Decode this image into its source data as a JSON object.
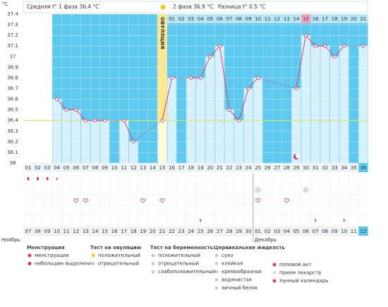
{
  "unit": "°C",
  "header": {
    "phase1": "Средняя t° 1 фаза 36.4 °C",
    "phase2": "2 фаза 36.9 °C",
    "difference": "Разница t° 0.5 °C"
  },
  "chart_data": {
    "type": "line",
    "categories": [
      "01",
      "02",
      "03",
      "04",
      "05",
      "06",
      "07",
      "08",
      "09",
      "10",
      "11",
      "12",
      "13",
      "14",
      "15",
      "16",
      "17",
      "18",
      "19",
      "20",
      "21",
      "22",
      "23",
      "24",
      "25",
      "26",
      "27",
      "28",
      "29",
      "30",
      "31",
      "32",
      "33",
      "34",
      "35",
      "36"
    ],
    "values": [
      null,
      null,
      null,
      36.6,
      36.5,
      36.5,
      36.4,
      36.4,
      36.4,
      null,
      36.4,
      36.2,
      null,
      null,
      36.4,
      36.8,
      null,
      36.8,
      36.8,
      37.0,
      37.1,
      36.5,
      36.4,
      36.7,
      36.8,
      null,
      null,
      null,
      36.7,
      37.2,
      37.1,
      37.1,
      37.0,
      37.1,
      null,
      37.1
    ],
    "ylim": [
      36,
      37.4
    ],
    "yticks": [
      36,
      36.1,
      36.2,
      36.3,
      36.4,
      36.5,
      36.6,
      36.7,
      36.8,
      36.9,
      37,
      37.1,
      37.2,
      37.3,
      37.4
    ],
    "grid": true,
    "color": "#e23a6e",
    "bar_color": "#d6f1fb",
    "background_color": "#5ec9ef",
    "cover_line": 36.4,
    "cover_color": "#d6e86e"
  },
  "ovulation": {
    "label": "ОВУЛЯЦИЯ",
    "day": "15"
  },
  "phase2_days": {
    "labels": [
      "01",
      "02",
      "03",
      "04",
      "05",
      "06",
      "07",
      "08",
      "09",
      "10",
      "11",
      "12",
      "13",
      "14",
      "15",
      "16",
      "17",
      "18",
      "19",
      "20",
      "21"
    ],
    "highlighted": "15"
  },
  "dates": [
    "07",
    "08",
    "09",
    "10",
    "11",
    "12",
    "13",
    "14",
    "15",
    "16",
    "17",
    "18",
    "19",
    "20",
    "21",
    "22",
    "23",
    "24",
    "25",
    "26",
    "27",
    "28",
    "29",
    "30",
    "01",
    "02",
    "03",
    "04",
    "05",
    "06",
    "07",
    "08",
    "09",
    "10",
    "11",
    "12"
  ],
  "months": [
    "Ноябрь",
    "Декабрь"
  ],
  "legend": [
    {
      "title": "Менструация",
      "items": [
        "менструация",
        "небольшие выделения"
      ]
    },
    {
      "title": "Тест на овуляцию",
      "items": [
        "положительный",
        "отрицательный"
      ]
    },
    {
      "title": "Тест на беременность",
      "items": [
        "положительный",
        "отрицательный",
        "слабоположительный"
      ]
    },
    {
      "title": "Цервикальная жидкость",
      "items": [
        "сухо",
        "клейкая",
        "кремообразная",
        "водянистая",
        "яичный белок"
      ]
    },
    {
      "title": null,
      "items": [
        "половой акт",
        "прием лекарств",
        "лунный календарь"
      ]
    }
  ]
}
